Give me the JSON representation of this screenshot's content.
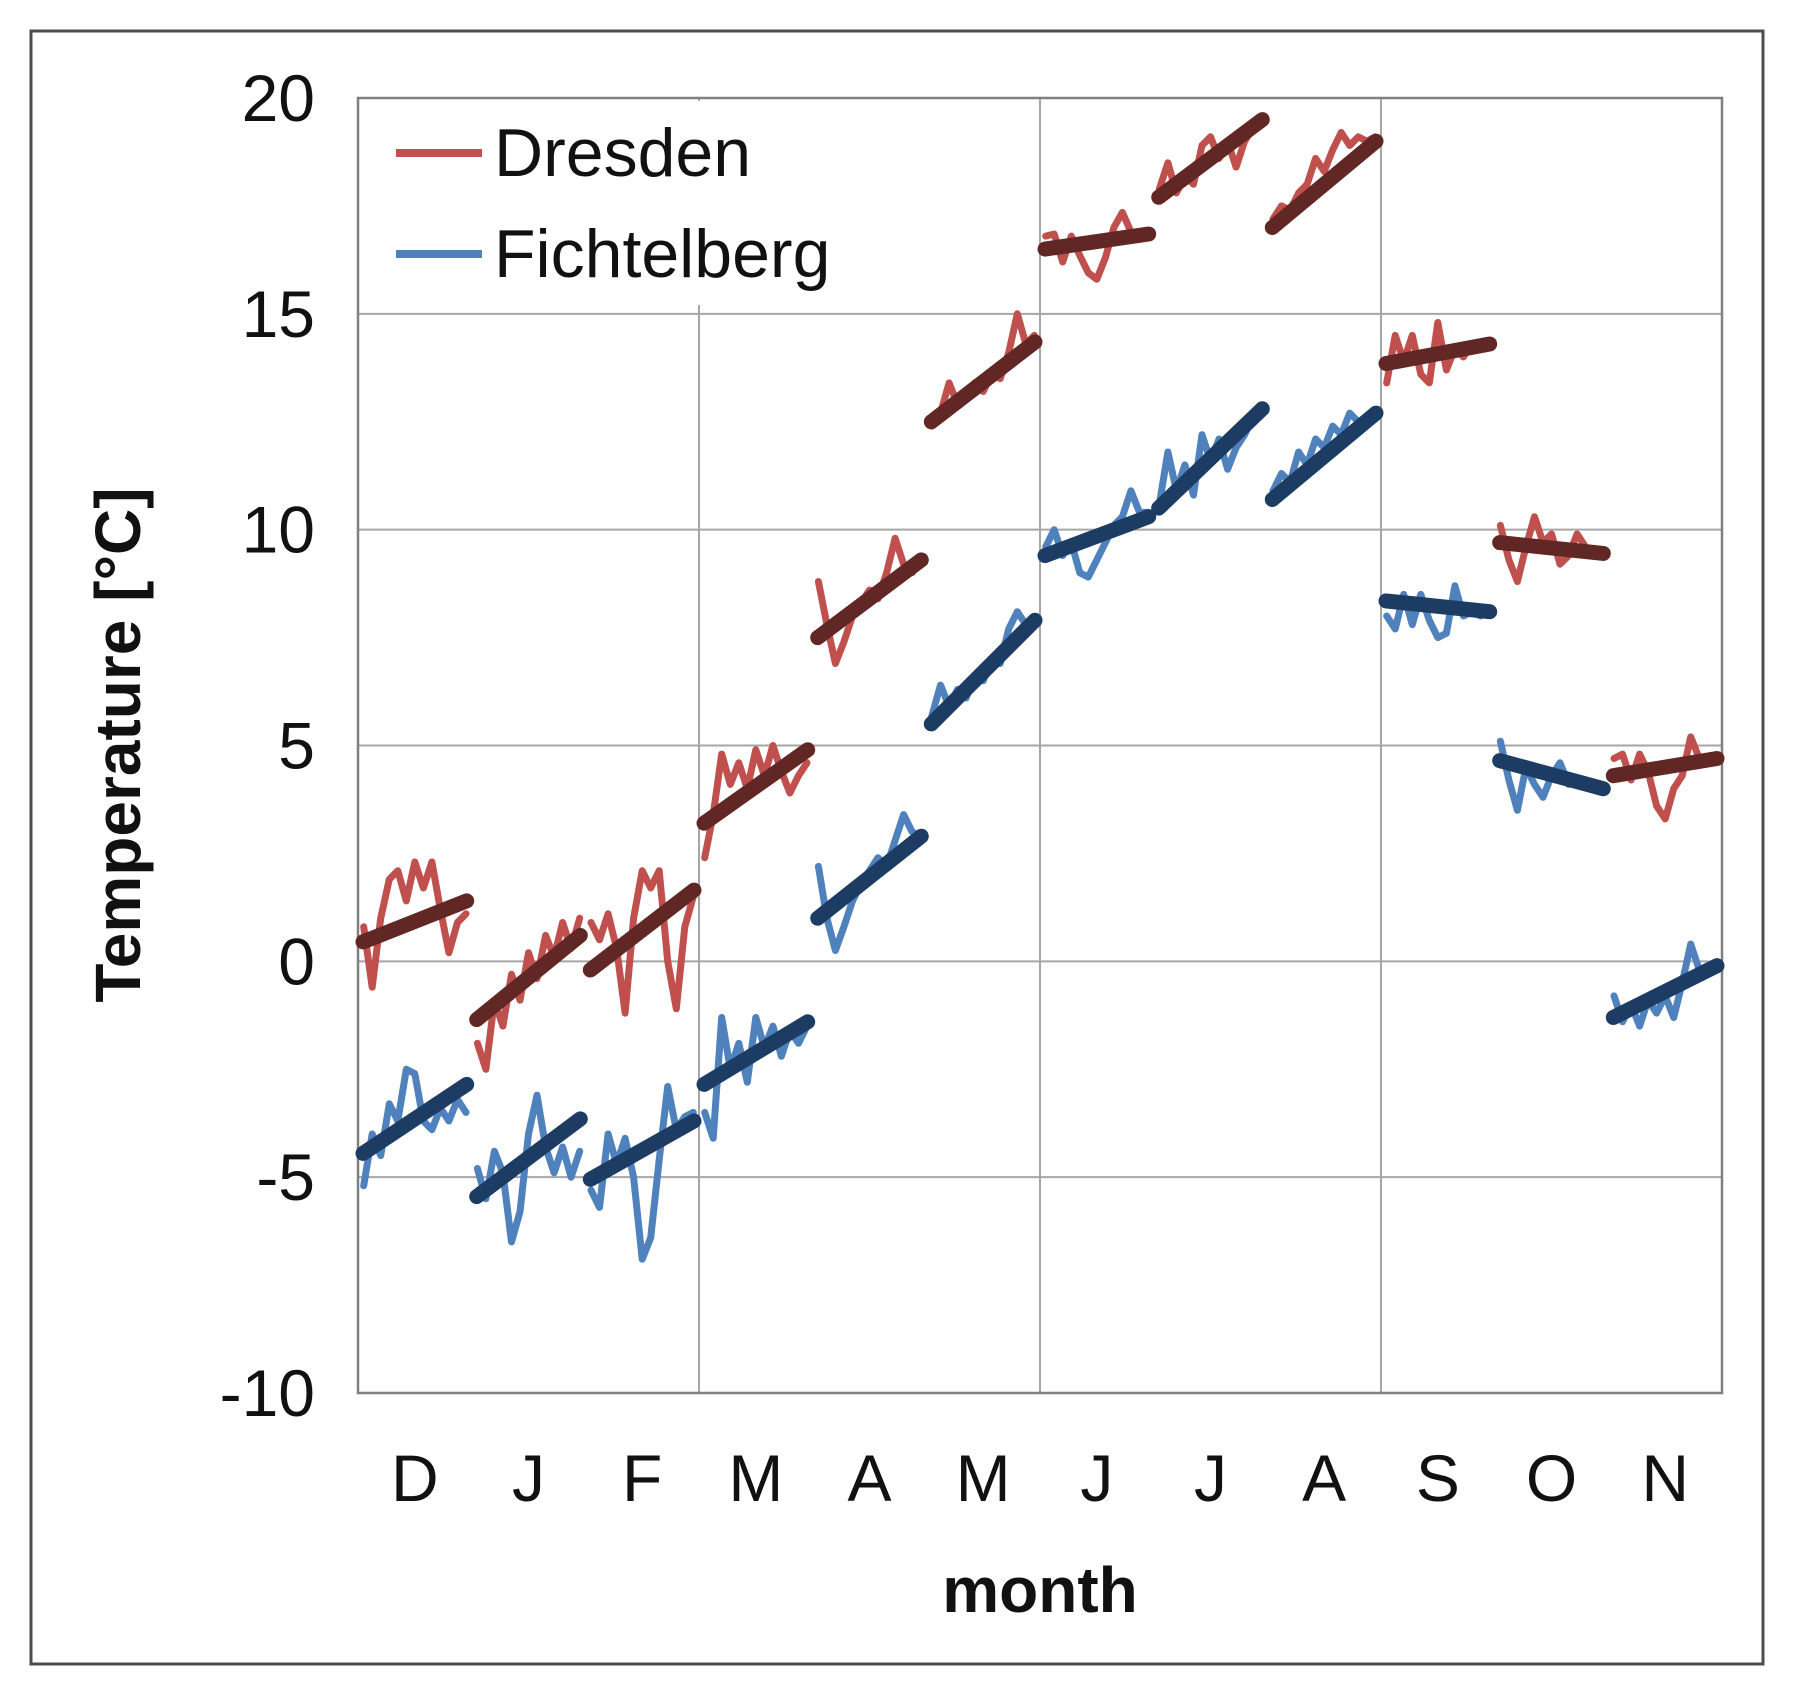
{
  "chart": {
    "y_axis": {
      "title": "Temperature [°C]",
      "tick_values": [
        20,
        15,
        10,
        5,
        0,
        -5,
        -10
      ],
      "min": -10,
      "max": 20,
      "gridline_values": [
        15,
        10,
        5,
        0,
        -5
      ]
    },
    "x_axis": {
      "title": "month",
      "labels": [
        "D",
        "J",
        "F",
        "M",
        "A",
        "M",
        "J",
        "J",
        "A",
        "S",
        "O",
        "N"
      ],
      "quarter_gridline_after_month": [
        3,
        6,
        9
      ]
    },
    "legend": {
      "entries": [
        {
          "label": "Dresden"
        },
        {
          "label": "Fichtelberg"
        }
      ]
    },
    "colors": {
      "dresden_daily": "#C0504D",
      "dresden_trend": "#612724",
      "fichtelberg_daily": "#4F81BD",
      "fichtelberg_trend": "#1C3C63",
      "gridline": "#A6A6A6",
      "plot_border": "#808080",
      "outer_frame": "#4D4D4D",
      "text": "#111111",
      "background": "#FFFFFF"
    }
  },
  "chart_data": {
    "type": "line",
    "title": "",
    "xlabel": "month",
    "ylabel": "Temperature [°C]",
    "ylim": [
      -10,
      20
    ],
    "grid": "on",
    "legend_position": "top-left-inside",
    "categories": [
      "D",
      "J",
      "F",
      "M",
      "A",
      "M",
      "J",
      "J",
      "A",
      "S",
      "O",
      "N"
    ],
    "series": [
      {
        "name": "Dresden",
        "color": "#C0504D",
        "trend_color": "#612724",
        "monthly_trend": [
          [
            0.45,
            1.4
          ],
          [
            -1.35,
            0.6
          ],
          [
            -0.2,
            1.65
          ],
          [
            3.2,
            4.9
          ],
          [
            7.5,
            9.3
          ],
          [
            12.5,
            14.35
          ],
          [
            16.5,
            16.85
          ],
          [
            17.7,
            19.5
          ],
          [
            17.0,
            19.0
          ],
          [
            13.85,
            14.3
          ],
          [
            9.7,
            9.45
          ],
          [
            4.3,
            4.7
          ]
        ],
        "daily": [
          [
            0.8,
            -0.6,
            1.0,
            1.9,
            2.1,
            1.4,
            2.3,
            1.7,
            2.3,
            1.2,
            0.2,
            0.9,
            1.1
          ],
          [
            -1.9,
            -2.5,
            -0.9,
            -1.5,
            -0.3,
            -0.9,
            0.2,
            -0.4,
            0.6,
            0.1,
            0.9,
            0.3,
            1.0
          ],
          [
            0.9,
            0.5,
            1.1,
            0.3,
            -1.2,
            1.0,
            2.1,
            1.7,
            2.1,
            0.0,
            -1.1,
            0.8,
            1.5
          ],
          [
            2.4,
            3.4,
            4.8,
            4.1,
            4.6,
            4.0,
            4.9,
            4.3,
            5.0,
            4.4,
            3.9,
            4.3,
            4.6
          ],
          [
            8.8,
            7.8,
            6.9,
            7.4,
            8.0,
            8.3,
            8.6,
            8.4,
            9.0,
            9.8,
            9.2,
            9.0,
            9.3
          ],
          [
            12.4,
            12.7,
            13.4,
            12.9,
            13.1,
            13.4,
            13.2,
            13.6,
            13.5,
            14.1,
            15.0,
            14.3,
            14.5
          ],
          [
            16.8,
            16.85,
            16.2,
            16.8,
            16.35,
            15.95,
            15.8,
            16.3,
            17.0,
            17.35,
            16.9,
            16.85,
            16.9
          ],
          [
            17.9,
            18.5,
            17.8,
            18.2,
            18.0,
            18.9,
            19.1,
            18.6,
            19.0,
            18.4,
            19.0,
            19.3,
            19.5
          ],
          [
            17.2,
            17.5,
            17.4,
            17.8,
            18.0,
            18.6,
            18.3,
            18.8,
            19.2,
            18.9,
            19.1,
            19.0,
            19.1
          ],
          [
            13.4,
            14.5,
            13.9,
            14.5,
            13.6,
            13.4,
            14.8,
            13.7,
            14.2,
            14.0,
            14.3,
            14.2,
            14.3
          ],
          [
            10.1,
            9.3,
            8.8,
            9.6,
            10.3,
            9.7,
            9.9,
            9.2,
            9.4,
            9.9,
            9.6,
            9.5,
            9.5
          ],
          [
            4.7,
            4.8,
            4.2,
            4.8,
            4.4,
            3.6,
            3.3,
            4.0,
            4.3,
            5.2,
            4.7,
            4.6,
            4.7
          ]
        ]
      },
      {
        "name": "Fichtelberg",
        "color": "#4F81BD",
        "trend_color": "#1C3C63",
        "monthly_trend": [
          [
            -4.45,
            -2.85
          ],
          [
            -5.45,
            -3.65
          ],
          [
            -5.05,
            -3.7
          ],
          [
            -2.85,
            -1.4
          ],
          [
            1.0,
            2.9
          ],
          [
            5.5,
            7.9
          ],
          [
            9.4,
            10.3
          ],
          [
            10.5,
            12.8
          ],
          [
            10.7,
            12.7
          ],
          [
            8.35,
            8.1
          ],
          [
            4.65,
            4.0
          ],
          [
            -1.3,
            -0.1
          ]
        ],
        "daily": [
          [
            -5.2,
            -4.0,
            -4.5,
            -3.3,
            -3.7,
            -2.5,
            -2.6,
            -3.7,
            -3.9,
            -3.4,
            -3.7,
            -3.2,
            -3.5
          ],
          [
            -4.8,
            -5.5,
            -4.4,
            -4.9,
            -6.5,
            -5.8,
            -4.0,
            -3.1,
            -4.3,
            -4.9,
            -4.3,
            -5.0,
            -4.4
          ],
          [
            -5.3,
            -5.7,
            -4.0,
            -4.7,
            -4.1,
            -5.0,
            -6.9,
            -6.4,
            -4.6,
            -2.9,
            -3.9,
            -3.6,
            -3.5
          ],
          [
            -3.5,
            -4.1,
            -1.3,
            -2.5,
            -1.9,
            -2.8,
            -1.3,
            -2.0,
            -1.5,
            -2.2,
            -1.6,
            -1.9,
            -1.5
          ],
          [
            2.2,
            1.0,
            0.25,
            0.8,
            1.4,
            1.8,
            2.1,
            2.4,
            2.2,
            2.8,
            3.4,
            3.0,
            2.9
          ],
          [
            5.7,
            6.4,
            5.9,
            6.3,
            6.1,
            6.6,
            6.5,
            7.0,
            6.9,
            7.7,
            8.1,
            7.8,
            7.9
          ],
          [
            9.6,
            10.0,
            9.4,
            9.7,
            9.0,
            8.9,
            9.3,
            9.7,
            10.1,
            10.3,
            10.9,
            10.4,
            10.4
          ],
          [
            10.6,
            11.8,
            10.9,
            11.5,
            10.8,
            12.2,
            11.6,
            12.1,
            11.4,
            11.9,
            12.2,
            12.6,
            12.8
          ],
          [
            10.9,
            11.3,
            11.1,
            11.8,
            11.5,
            12.1,
            11.9,
            12.4,
            12.2,
            12.7,
            12.5,
            12.6,
            12.7
          ],
          [
            8.0,
            7.7,
            8.5,
            7.8,
            8.5,
            7.9,
            7.5,
            7.6,
            8.7,
            8.0,
            8.1,
            8.0,
            8.1
          ],
          [
            5.1,
            4.2,
            3.5,
            4.5,
            4.1,
            3.8,
            4.3,
            4.6,
            4.1,
            4.2,
            4.1,
            4.0,
            4.0
          ],
          [
            -0.8,
            -1.4,
            -1.0,
            -1.5,
            -0.9,
            -1.2,
            -0.8,
            -1.3,
            -0.5,
            0.4,
            -0.2,
            -0.1,
            -0.1
          ]
        ]
      }
    ]
  }
}
